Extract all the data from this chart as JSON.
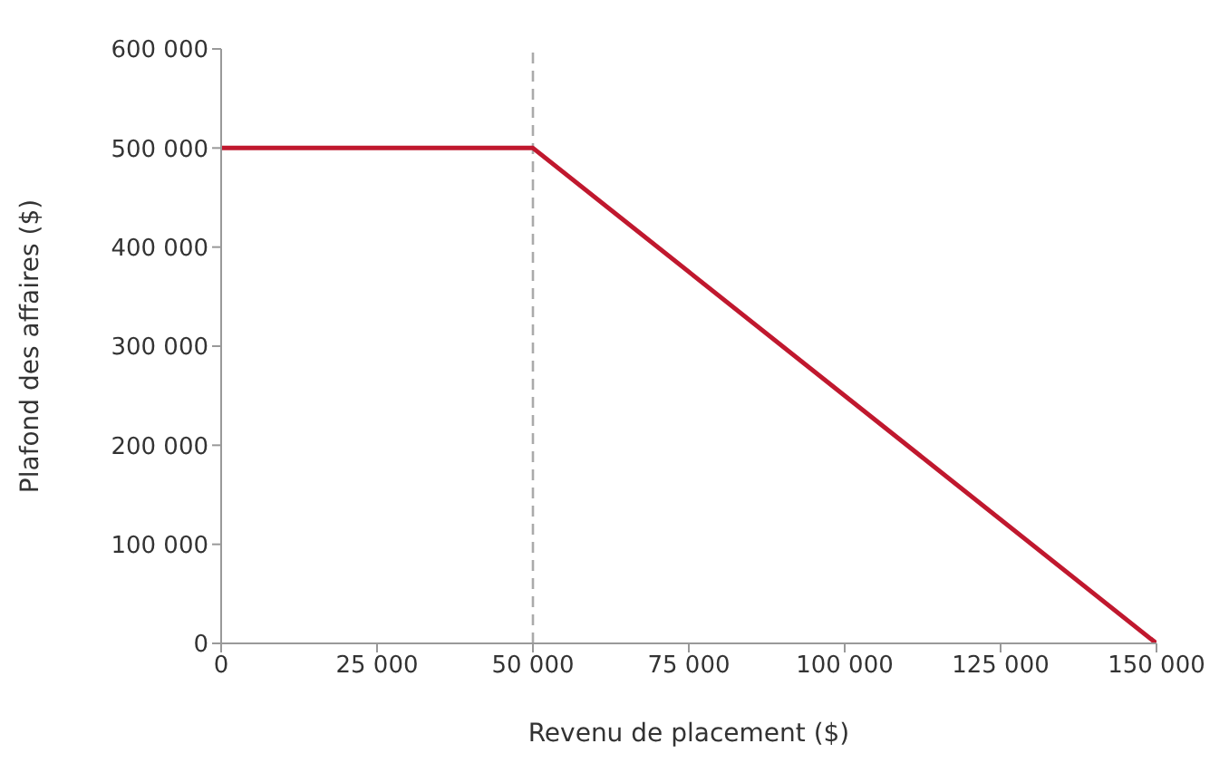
{
  "chart_data": {
    "type": "line",
    "xlabel": "Revenu de placement ($)",
    "ylabel": "Plafond des affaires ($)",
    "x": [
      0,
      50000,
      150000
    ],
    "series": [
      {
        "color": "#c0182e",
        "values": [
          500000,
          500000,
          0
        ]
      }
    ],
    "xlim": [
      0,
      150000
    ],
    "xticks": [
      0,
      {
        "value": 25000,
        "label": "25 000"
      },
      {
        "value": 50000,
        "label": "50 000"
      },
      {
        "value": 75000,
        "label": "75 000"
      },
      {
        "value": 100000,
        "label": "100 000"
      },
      {
        "value": 125000,
        "label": "125 000"
      },
      {
        "value": 150000,
        "label": "150 000"
      }
    ],
    "ylim": [
      0,
      600000
    ],
    "yticks": [
      0,
      {
        "value": 100000,
        "label": "100 000"
      },
      {
        "value": 200000,
        "label": "200 000"
      },
      {
        "value": 300000,
        "label": "300 000"
      },
      {
        "value": 400000,
        "label": "400 000"
      },
      {
        "value": 500000,
        "label": "500 000"
      },
      {
        "value": 600000,
        "label": "600 000"
      }
    ],
    "ref_lines": [
      {
        "axis": "x",
        "value": 50000,
        "color": "#aaaaaa",
        "line_style": "dashed"
      }
    ],
    "grid": false,
    "legend": false,
    "marker": "none",
    "line_style": "solid"
  }
}
